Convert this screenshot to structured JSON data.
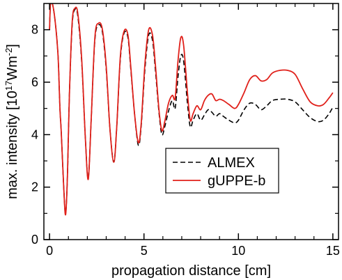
{
  "chart_data": {
    "type": "line",
    "xlabel": "propagation distance [cm]",
    "ylabel_parts": {
      "pre": "max. intensity [10",
      "exp1": "17",
      "mid": "Wm",
      "exp2": "-2",
      "post": "]"
    },
    "xlim": [
      -0.3,
      15.3
    ],
    "ylim": [
      0,
      9
    ],
    "xticks": [
      0,
      5,
      10,
      15
    ],
    "yticks": [
      0,
      2,
      4,
      6,
      8
    ],
    "legend_position": "center-right",
    "series": [
      {
        "name": "ALMEX",
        "color": "#000000",
        "dash": "dashed",
        "points": [
          [
            0,
            8.0
          ],
          [
            0.05,
            9.0
          ],
          [
            0.15,
            9.0
          ],
          [
            0.3,
            8.3
          ],
          [
            0.45,
            7.0
          ],
          [
            0.55,
            5.0
          ],
          [
            0.62,
            4.1
          ],
          [
            0.75,
            2.0
          ],
          [
            0.85,
            1.0
          ],
          [
            0.95,
            2.5
          ],
          [
            1.05,
            5.5
          ],
          [
            1.2,
            8.2
          ],
          [
            1.35,
            8.78
          ],
          [
            1.5,
            8.5
          ],
          [
            1.7,
            6.8
          ],
          [
            1.9,
            3.8
          ],
          [
            2.05,
            2.35
          ],
          [
            2.2,
            4.5
          ],
          [
            2.4,
            7.6
          ],
          [
            2.6,
            8.18
          ],
          [
            2.8,
            7.9
          ],
          [
            3.0,
            6.5
          ],
          [
            3.2,
            4.2
          ],
          [
            3.4,
            2.95
          ],
          [
            3.55,
            4.2
          ],
          [
            3.75,
            6.9
          ],
          [
            3.95,
            7.88
          ],
          [
            4.15,
            7.7
          ],
          [
            4.3,
            6.5
          ],
          [
            4.5,
            4.8
          ],
          [
            4.7,
            3.6
          ],
          [
            4.85,
            4.3
          ],
          [
            5.05,
            6.5
          ],
          [
            5.25,
            7.8
          ],
          [
            5.45,
            7.6
          ],
          [
            5.6,
            6.5
          ],
          [
            5.8,
            4.8
          ],
          [
            5.95,
            4.0
          ],
          [
            6.1,
            4.3
          ],
          [
            6.3,
            4.9
          ],
          [
            6.5,
            5.3
          ],
          [
            6.65,
            5.0
          ],
          [
            6.8,
            6.2
          ],
          [
            6.95,
            7.0
          ],
          [
            7.1,
            6.8
          ],
          [
            7.3,
            5.2
          ],
          [
            7.45,
            4.3
          ],
          [
            7.6,
            4.55
          ],
          [
            7.8,
            4.8
          ],
          [
            8.0,
            4.55
          ],
          [
            8.2,
            4.75
          ],
          [
            8.4,
            4.95
          ],
          [
            8.6,
            4.85
          ],
          [
            8.8,
            4.7
          ],
          [
            9.0,
            4.8
          ],
          [
            9.2,
            4.7
          ],
          [
            9.5,
            4.55
          ],
          [
            9.8,
            4.45
          ],
          [
            10.0,
            4.55
          ],
          [
            10.3,
            4.95
          ],
          [
            10.6,
            5.2
          ],
          [
            10.9,
            5.15
          ],
          [
            11.2,
            4.95
          ],
          [
            11.5,
            5.1
          ],
          [
            11.8,
            5.3
          ],
          [
            12.2,
            5.35
          ],
          [
            12.6,
            5.35
          ],
          [
            13.0,
            5.25
          ],
          [
            13.4,
            4.95
          ],
          [
            13.8,
            4.65
          ],
          [
            14.2,
            4.5
          ],
          [
            14.5,
            4.55
          ],
          [
            14.8,
            4.8
          ],
          [
            15.0,
            5.05
          ]
        ]
      },
      {
        "name": "gUPPE-b",
        "color": "#e0201a",
        "dash": "solid",
        "points": [
          [
            0,
            8.0
          ],
          [
            0.05,
            9.0
          ],
          [
            0.15,
            9.0
          ],
          [
            0.3,
            8.3
          ],
          [
            0.45,
            7.0
          ],
          [
            0.55,
            5.0
          ],
          [
            0.62,
            4.1
          ],
          [
            0.75,
            2.0
          ],
          [
            0.85,
            0.95
          ],
          [
            0.95,
            2.5
          ],
          [
            1.05,
            5.5
          ],
          [
            1.2,
            8.3
          ],
          [
            1.35,
            8.82
          ],
          [
            1.5,
            8.6
          ],
          [
            1.7,
            6.9
          ],
          [
            1.9,
            3.8
          ],
          [
            2.05,
            2.3
          ],
          [
            2.2,
            4.5
          ],
          [
            2.4,
            7.7
          ],
          [
            2.6,
            8.25
          ],
          [
            2.8,
            8.0
          ],
          [
            3.0,
            6.6
          ],
          [
            3.2,
            4.2
          ],
          [
            3.4,
            2.95
          ],
          [
            3.55,
            4.2
          ],
          [
            3.75,
            7.0
          ],
          [
            3.95,
            7.95
          ],
          [
            4.15,
            7.8
          ],
          [
            4.3,
            6.6
          ],
          [
            4.5,
            4.8
          ],
          [
            4.7,
            3.7
          ],
          [
            4.85,
            4.4
          ],
          [
            5.05,
            6.7
          ],
          [
            5.25,
            8.0
          ],
          [
            5.45,
            7.8
          ],
          [
            5.6,
            6.7
          ],
          [
            5.8,
            4.9
          ],
          [
            5.95,
            4.15
          ],
          [
            6.1,
            4.5
          ],
          [
            6.3,
            5.2
          ],
          [
            6.5,
            5.5
          ],
          [
            6.65,
            5.4
          ],
          [
            6.8,
            6.8
          ],
          [
            6.95,
            7.7
          ],
          [
            7.1,
            7.4
          ],
          [
            7.3,
            5.6
          ],
          [
            7.45,
            4.55
          ],
          [
            7.6,
            4.8
          ],
          [
            7.8,
            5.1
          ],
          [
            8.0,
            4.95
          ],
          [
            8.2,
            5.3
          ],
          [
            8.4,
            5.5
          ],
          [
            8.6,
            5.55
          ],
          [
            8.8,
            5.3
          ],
          [
            9.0,
            5.35
          ],
          [
            9.2,
            5.3
          ],
          [
            9.5,
            5.15
          ],
          [
            9.8,
            5.0
          ],
          [
            10.0,
            5.15
          ],
          [
            10.3,
            5.6
          ],
          [
            10.6,
            6.1
          ],
          [
            10.9,
            6.25
          ],
          [
            11.2,
            6.05
          ],
          [
            11.5,
            6.1
          ],
          [
            11.8,
            6.35
          ],
          [
            12.2,
            6.45
          ],
          [
            12.6,
            6.45
          ],
          [
            13.0,
            6.3
          ],
          [
            13.4,
            5.75
          ],
          [
            13.8,
            5.25
          ],
          [
            14.2,
            5.1
          ],
          [
            14.5,
            5.15
          ],
          [
            14.8,
            5.4
          ],
          [
            15.0,
            5.6
          ]
        ]
      }
    ]
  }
}
